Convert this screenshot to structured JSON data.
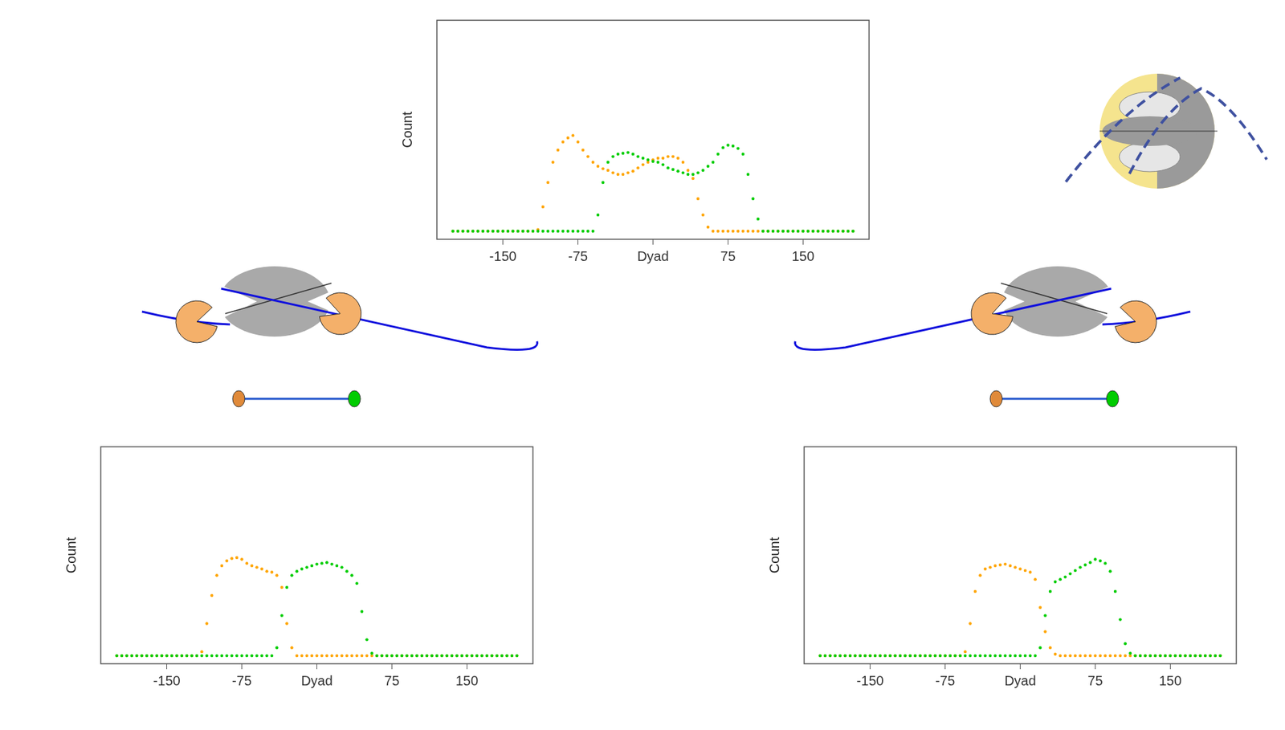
{
  "chart_data": [
    {
      "type": "scatter",
      "ylabel": "Count",
      "tick_labels": "x",
      "grid": false,
      "marker": "circle",
      "xlim": [
        -216,
        216
      ],
      "xticks": [
        -150,
        -75,
        {
          "value": 0,
          "label": "Dyad"
        },
        75,
        150
      ],
      "ylim": [
        -10,
        260
      ],
      "x": [
        -200,
        -195,
        -190,
        -185,
        -180,
        -175,
        -170,
        -165,
        -160,
        -155,
        -150,
        -145,
        -140,
        -135,
        -130,
        -125,
        -120,
        -115,
        -110,
        -105,
        -100,
        -95,
        -90,
        -85,
        -80,
        -75,
        -70,
        -65,
        -60,
        -55,
        -50,
        -45,
        -40,
        -35,
        -30,
        -25,
        -20,
        -15,
        -10,
        -5,
        0,
        5,
        10,
        15,
        20,
        25,
        30,
        35,
        40,
        45,
        50,
        55,
        60,
        65,
        70,
        75,
        80,
        85,
        90,
        95,
        100,
        105,
        110,
        115,
        120,
        125,
        130,
        135,
        140,
        145,
        150,
        155,
        160,
        165,
        170,
        175,
        180,
        185,
        190,
        195,
        200
      ],
      "series": [
        {
          "color": "#ffa500",
          "values": [
            0,
            0,
            0,
            0,
            0,
            0,
            0,
            0,
            0,
            0,
            0,
            0,
            0,
            0,
            0,
            0,
            0,
            2,
            30,
            60,
            85,
            100,
            110,
            115,
            118,
            110,
            100,
            92,
            85,
            80,
            77,
            75,
            72,
            70,
            70,
            72,
            74,
            78,
            82,
            85,
            88,
            90,
            90,
            92,
            92,
            90,
            85,
            75,
            65,
            40,
            20,
            5,
            0,
            0,
            0,
            0,
            0,
            0,
            0,
            0,
            0,
            0,
            0,
            0,
            0,
            0,
            0,
            0,
            0,
            0,
            0,
            0,
            0,
            0,
            0,
            0,
            0,
            0,
            0,
            0,
            0
          ]
        },
        {
          "color": "#00cd00",
          "values": [
            0,
            0,
            0,
            0,
            0,
            0,
            0,
            0,
            0,
            0,
            0,
            0,
            0,
            0,
            0,
            0,
            0,
            0,
            0,
            0,
            0,
            0,
            0,
            0,
            0,
            0,
            0,
            0,
            0,
            20,
            60,
            85,
            92,
            95,
            96,
            97,
            95,
            92,
            90,
            88,
            86,
            85,
            82,
            78,
            76,
            74,
            72,
            70,
            70,
            72,
            75,
            80,
            85,
            95,
            103,
            106,
            105,
            102,
            95,
            70,
            40,
            15,
            0,
            0,
            0,
            0,
            0,
            0,
            0,
            0,
            0,
            0,
            0,
            0,
            0,
            0,
            0,
            0,
            0,
            0,
            0
          ]
        }
      ]
    },
    {
      "type": "scatter",
      "ylabel": "Count",
      "tick_labels": "x",
      "grid": false,
      "marker": "circle",
      "xlim": [
        -216,
        216
      ],
      "xticks": [
        -150,
        -75,
        {
          "value": 0,
          "label": "Dyad"
        },
        75,
        150
      ],
      "ylim": [
        -10,
        260
      ],
      "x": [
        -200,
        -195,
        -190,
        -185,
        -180,
        -175,
        -170,
        -165,
        -160,
        -155,
        -150,
        -145,
        -140,
        -135,
        -130,
        -125,
        -120,
        -115,
        -110,
        -105,
        -100,
        -95,
        -90,
        -85,
        -80,
        -75,
        -70,
        -65,
        -60,
        -55,
        -50,
        -45,
        -40,
        -35,
        -30,
        -25,
        -20,
        -15,
        -10,
        -5,
        0,
        5,
        10,
        15,
        20,
        25,
        30,
        35,
        40,
        45,
        50,
        55,
        60,
        65,
        70,
        75,
        80,
        85,
        90,
        95,
        100,
        105,
        110,
        115,
        120,
        125,
        130,
        135,
        140,
        145,
        150,
        155,
        160,
        165,
        170,
        175,
        180,
        185,
        190,
        195,
        200
      ],
      "series": [
        {
          "color": "#ffa500",
          "values": [
            0,
            0,
            0,
            0,
            0,
            0,
            0,
            0,
            0,
            0,
            0,
            0,
            0,
            0,
            0,
            0,
            0,
            5,
            40,
            75,
            100,
            112,
            118,
            121,
            122,
            120,
            115,
            112,
            110,
            108,
            105,
            104,
            100,
            85,
            40,
            10,
            0,
            0,
            0,
            0,
            0,
            0,
            0,
            0,
            0,
            0,
            0,
            0,
            0,
            0,
            0,
            0,
            0,
            0,
            0,
            0,
            0,
            0,
            0,
            0,
            0,
            0,
            0,
            0,
            0,
            0,
            0,
            0,
            0,
            0,
            0,
            0,
            0,
            0,
            0,
            0,
            0,
            0,
            0,
            0,
            0
          ]
        },
        {
          "color": "#00cd00",
          "values": [
            0,
            0,
            0,
            0,
            0,
            0,
            0,
            0,
            0,
            0,
            0,
            0,
            0,
            0,
            0,
            0,
            0,
            0,
            0,
            0,
            0,
            0,
            0,
            0,
            0,
            0,
            0,
            0,
            0,
            0,
            0,
            0,
            10,
            50,
            85,
            100,
            105,
            108,
            110,
            112,
            114,
            115,
            116,
            114,
            112,
            110,
            105,
            100,
            90,
            55,
            20,
            3,
            0,
            0,
            0,
            0,
            0,
            0,
            0,
            0,
            0,
            0,
            0,
            0,
            0,
            0,
            0,
            0,
            0,
            0,
            0,
            0,
            0,
            0,
            0,
            0,
            0,
            0,
            0,
            0,
            0
          ]
        }
      ]
    },
    {
      "type": "scatter",
      "ylabel": "Count",
      "tick_labels": "x",
      "grid": false,
      "marker": "circle",
      "xlim": [
        -216,
        216
      ],
      "xticks": [
        -150,
        -75,
        {
          "value": 0,
          "label": "Dyad"
        },
        75,
        150
      ],
      "ylim": [
        -10,
        260
      ],
      "x": [
        -200,
        -195,
        -190,
        -185,
        -180,
        -175,
        -170,
        -165,
        -160,
        -155,
        -150,
        -145,
        -140,
        -135,
        -130,
        -125,
        -120,
        -115,
        -110,
        -105,
        -100,
        -95,
        -90,
        -85,
        -80,
        -75,
        -70,
        -65,
        -60,
        -55,
        -50,
        -45,
        -40,
        -35,
        -30,
        -25,
        -20,
        -15,
        -10,
        -5,
        0,
        5,
        10,
        15,
        20,
        25,
        30,
        35,
        40,
        45,
        50,
        55,
        60,
        65,
        70,
        75,
        80,
        85,
        90,
        95,
        100,
        105,
        110,
        115,
        120,
        125,
        130,
        135,
        140,
        145,
        150,
        155,
        160,
        165,
        170,
        175,
        180,
        185,
        190,
        195,
        200
      ],
      "series": [
        {
          "color": "#ffa500",
          "values": [
            0,
            0,
            0,
            0,
            0,
            0,
            0,
            0,
            0,
            0,
            0,
            0,
            0,
            0,
            0,
            0,
            0,
            0,
            0,
            0,
            0,
            0,
            0,
            0,
            0,
            0,
            0,
            0,
            0,
            5,
            40,
            80,
            100,
            108,
            110,
            112,
            113,
            114,
            112,
            110,
            108,
            106,
            104,
            95,
            60,
            30,
            10,
            2,
            0,
            0,
            0,
            0,
            0,
            0,
            0,
            0,
            0,
            0,
            0,
            0,
            0,
            0,
            0,
            0,
            0,
            0,
            0,
            0,
            0,
            0,
            0,
            0,
            0,
            0,
            0,
            0,
            0,
            0,
            0,
            0,
            0
          ]
        },
        {
          "color": "#00cd00",
          "values": [
            0,
            0,
            0,
            0,
            0,
            0,
            0,
            0,
            0,
            0,
            0,
            0,
            0,
            0,
            0,
            0,
            0,
            0,
            0,
            0,
            0,
            0,
            0,
            0,
            0,
            0,
            0,
            0,
            0,
            0,
            0,
            0,
            0,
            0,
            0,
            0,
            0,
            0,
            0,
            0,
            0,
            0,
            0,
            0,
            10,
            50,
            80,
            92,
            95,
            98,
            102,
            106,
            110,
            113,
            116,
            120,
            118,
            115,
            105,
            80,
            45,
            15,
            3,
            0,
            0,
            0,
            0,
            0,
            0,
            0,
            0,
            0,
            0,
            0,
            0,
            0,
            0,
            0,
            0,
            0,
            0
          ]
        }
      ]
    }
  ]
}
